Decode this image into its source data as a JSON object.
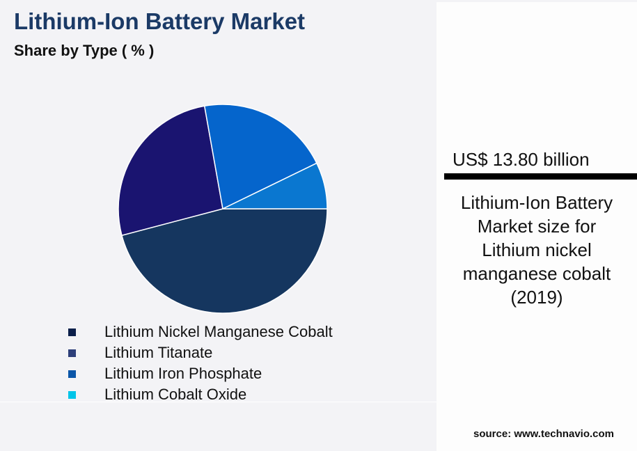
{
  "header": {
    "title": "Lithium-Ion Battery Market",
    "subtitle": "Share by Type ( % )"
  },
  "chart_data": {
    "type": "pie",
    "title": "Lithium-Ion Battery Market",
    "subtitle": "Share by Type ( % )",
    "categories": [
      "Lithium Nickel Manganese Cobalt",
      "Lithium Titanate",
      "Lithium Iron Phosphate",
      "Lithium Cobalt Oxide"
    ],
    "values": [
      45.9,
      26.3,
      20.6,
      7.2
    ],
    "slice_colors": [
      "#15365f",
      "#1a1470",
      "#0565cc",
      "#0a77d0"
    ],
    "legend_colors": [
      "#0b1f4a",
      "#2d3f7a",
      "#0a55a8",
      "#00c4e8"
    ],
    "legend_position": "bottom"
  },
  "side": {
    "value": "US$ 13.80 billion",
    "description": [
      "Lithium-Ion Battery",
      "Market size for",
      "Lithium nickel",
      "manganese cobalt",
      "(2019)"
    ]
  },
  "source": "source: www.technavio.com"
}
